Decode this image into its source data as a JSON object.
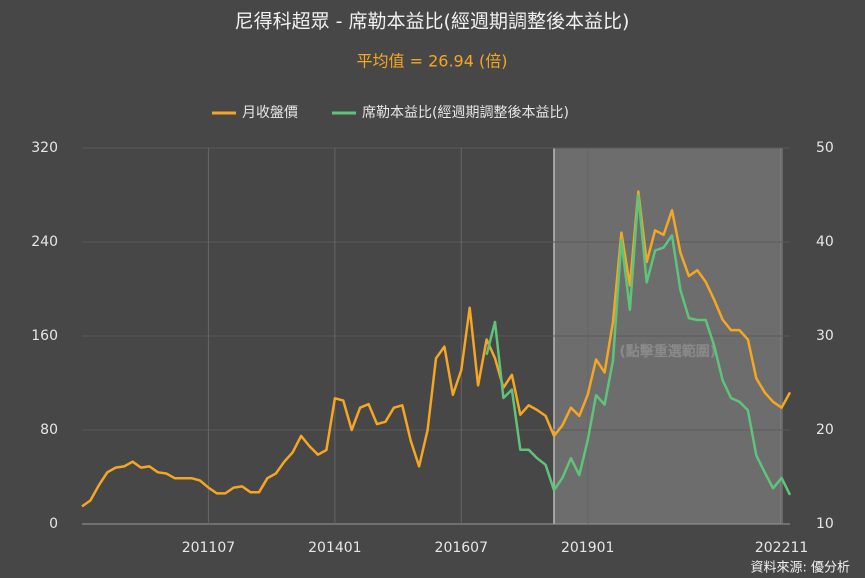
{
  "chart_data": {
    "type": "line",
    "title": "尼得科超眾 - 席勒本益比(經週期調整後本益比)",
    "subtitle": "平均值 = 26.94 (倍)",
    "source": "資料來源: 優分析",
    "selection_label": "(點擊重選範圍)",
    "selection_range": [
      56,
      83
    ],
    "grid": true,
    "categories": [
      null,
      null,
      null,
      null,
      null,
      null,
      null,
      null,
      null,
      null,
      null,
      null,
      null,
      null,
      null,
      "201107",
      null,
      null,
      null,
      null,
      null,
      null,
      null,
      null,
      null,
      null,
      null,
      null,
      null,
      null,
      "201401",
      null,
      null,
      null,
      null,
      null,
      null,
      null,
      null,
      null,
      null,
      null,
      null,
      null,
      null,
      "201607",
      null,
      null,
      null,
      null,
      null,
      null,
      null,
      null,
      null,
      null,
      null,
      null,
      null,
      null,
      "201901",
      null,
      null,
      null,
      null,
      null,
      null,
      null,
      null,
      null,
      null,
      null,
      null,
      null,
      null,
      null,
      null,
      null,
      null,
      null,
      null,
      null,
      null,
      "202211",
      null
    ],
    "ylim": [
      0,
      320
    ],
    "yticks": [
      0,
      80,
      160,
      240,
      320
    ],
    "y2lim": [
      10,
      50
    ],
    "y2ticks": [
      10,
      20,
      30,
      40,
      50
    ],
    "series": [
      {
        "name": "月收盤價",
        "color": "#f5a623",
        "values": [
          15,
          20,
          33,
          44,
          48,
          49,
          53,
          48,
          49,
          44,
          43,
          39,
          39,
          39,
          37,
          31,
          26,
          26,
          31,
          32,
          27,
          27,
          39,
          43,
          53,
          61,
          75,
          66,
          59,
          63,
          107,
          105,
          80,
          99,
          102,
          85,
          87,
          99,
          101,
          71,
          49,
          80,
          141,
          151,
          110,
          131,
          184,
          118,
          157,
          141,
          116,
          127,
          93,
          101,
          97,
          92,
          75,
          84,
          99,
          92,
          110,
          140,
          129,
          172,
          248,
          203,
          283,
          223,
          250,
          246,
          267,
          231,
          211,
          216,
          206,
          191,
          174,
          165,
          165,
          157,
          124,
          112,
          104,
          99,
          112
        ]
      },
      {
        "name": "席勒本益比(經週期調整後本益比)",
        "color": "#5ec47a",
        "axis": "y2",
        "values": [
          null,
          null,
          null,
          null,
          null,
          null,
          null,
          null,
          null,
          null,
          null,
          null,
          null,
          null,
          null,
          null,
          null,
          null,
          null,
          null,
          null,
          null,
          null,
          null,
          null,
          null,
          null,
          null,
          null,
          null,
          null,
          null,
          null,
          null,
          null,
          null,
          null,
          null,
          null,
          null,
          null,
          null,
          null,
          null,
          null,
          null,
          null,
          null,
          28.0,
          31.5,
          23.4,
          24.3,
          17.9,
          17.9,
          17.0,
          16.3,
          13.6,
          14.9,
          17.0,
          15.2,
          18.9,
          23.7,
          22.7,
          27.4,
          40.2,
          32.8,
          45.0,
          35.7,
          39.1,
          39.4,
          40.7,
          34.9,
          31.9,
          31.7,
          31.7,
          29.0,
          25.3,
          23.4,
          23.0,
          22.1,
          17.3,
          15.5,
          13.8,
          14.9,
          13.1
        ]
      }
    ]
  }
}
